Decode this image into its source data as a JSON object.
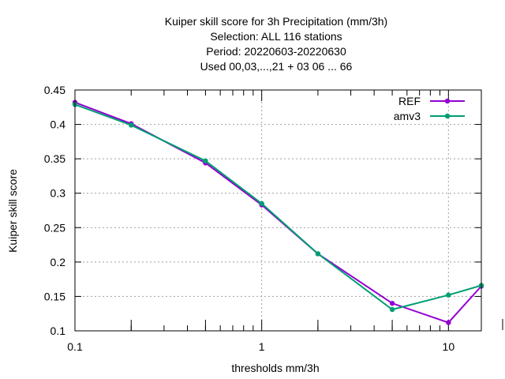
{
  "chart_data": {
    "type": "line",
    "title_lines": [
      "Kuiper skill score  for 3h Precipitation (mm/3h)",
      "Selection: ALL    116 stations",
      "Period: 20220603-20220630",
      "Used  00,03,...,21  + 03 06 ... 66"
    ],
    "xlabel": "thresholds mm/3h",
    "ylabel": "Kuiper skill score",
    "xscale": "log",
    "xlim": [
      0.1,
      15
    ],
    "ylim": [
      0.1,
      0.45
    ],
    "x_ticks": [
      0.1,
      1,
      10
    ],
    "x_tick_labels": [
      "0.1",
      "1",
      "10"
    ],
    "x_minor_ticks": [
      0.2,
      0.5,
      2,
      5
    ],
    "y_ticks": [
      0.1,
      0.15,
      0.2,
      0.25,
      0.3,
      0.35,
      0.4,
      0.45
    ],
    "y_tick_labels": [
      "0.1",
      "0.15",
      "0.2",
      "0.25",
      "0.3",
      "0.35",
      "0.4",
      "0.45"
    ],
    "grid": true,
    "legend_position": "top-right",
    "series": [
      {
        "name": "REF",
        "color": "#9400d3",
        "marker": "circle",
        "x": [
          0.1,
          0.2,
          0.5,
          1,
          2,
          5,
          10,
          15
        ],
        "y": [
          0.432,
          0.401,
          0.344,
          0.283,
          0.212,
          0.14,
          0.112,
          0.165
        ]
      },
      {
        "name": "amv3",
        "color": "#009e73",
        "marker": "circle",
        "x": [
          0.1,
          0.2,
          0.5,
          1,
          2,
          5,
          10,
          15
        ],
        "y": [
          0.429,
          0.399,
          0.347,
          0.285,
          0.212,
          0.131,
          0.152,
          0.166
        ]
      }
    ]
  }
}
